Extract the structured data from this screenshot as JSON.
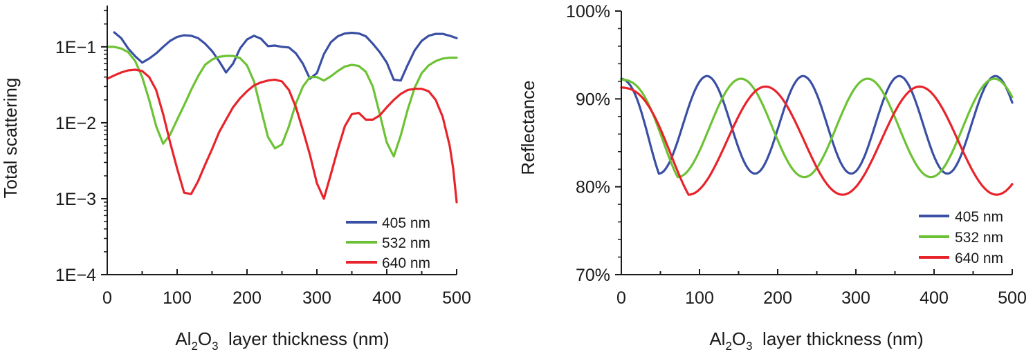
{
  "figure_title": "",
  "colors": {
    "405": "#3a4fa3",
    "532": "#6cc234",
    "640": "#e8232a",
    "axis": "#1a1a1a"
  },
  "chart_data": [
    {
      "type": "line",
      "title": "",
      "xlabel": {
        "base": "Al",
        "sub1": "2",
        "mid": "O",
        "sub2": "3",
        "rest": "  layer thickness (nm)"
      },
      "ylabel": "Total scattering",
      "yscale": "log",
      "xlim": [
        0,
        500
      ],
      "ylim": [
        0.0001,
        0.35
      ],
      "xticks": [
        0,
        100,
        200,
        300,
        400,
        500
      ],
      "xtick_labels": [
        "0",
        "100",
        "200",
        "300",
        "400",
        "500"
      ],
      "yticks": [
        0.0001,
        0.001,
        0.01,
        0.1
      ],
      "ytick_labels": [
        "1E−4",
        "1E−3",
        "1E−2",
        "1E−1"
      ],
      "legend_position": "bottom-right",
      "series": [
        {
          "name": "405 nm",
          "color_key": "405",
          "x": [
            10,
            20,
            30,
            40,
            50,
            60,
            70,
            80,
            90,
            100,
            110,
            120,
            130,
            140,
            150,
            160,
            170,
            180,
            190,
            200,
            210,
            220,
            230,
            240,
            250,
            260,
            270,
            280,
            290,
            300,
            310,
            320,
            330,
            340,
            350,
            360,
            370,
            380,
            390,
            400,
            410,
            420,
            430,
            440,
            450,
            460,
            470,
            480,
            490,
            500
          ],
          "y": [
            0.155,
            0.13,
            0.095,
            0.075,
            0.062,
            0.07,
            0.082,
            0.1,
            0.12,
            0.135,
            0.142,
            0.14,
            0.13,
            0.11,
            0.088,
            0.065,
            0.046,
            0.06,
            0.095,
            0.125,
            0.14,
            0.128,
            0.102,
            0.104,
            0.1,
            0.098,
            0.082,
            0.06,
            0.038,
            0.045,
            0.08,
            0.115,
            0.138,
            0.15,
            0.153,
            0.15,
            0.138,
            0.11,
            0.085,
            0.062,
            0.037,
            0.036,
            0.058,
            0.09,
            0.12,
            0.14,
            0.148,
            0.148,
            0.14,
            0.13
          ]
        },
        {
          "name": "532 nm",
          "color_key": "532",
          "x": [
            0,
            10,
            20,
            30,
            40,
            50,
            60,
            70,
            80,
            90,
            100,
            110,
            120,
            130,
            140,
            150,
            160,
            170,
            180,
            190,
            200,
            210,
            220,
            230,
            240,
            250,
            260,
            270,
            280,
            290,
            300,
            310,
            320,
            330,
            340,
            350,
            360,
            370,
            380,
            390,
            400,
            410,
            420,
            430,
            440,
            450,
            460,
            470,
            480,
            490,
            500
          ],
          "y": [
            0.1,
            0.1,
            0.095,
            0.085,
            0.065,
            0.04,
            0.02,
            0.009,
            0.0053,
            0.007,
            0.011,
            0.017,
            0.027,
            0.041,
            0.058,
            0.068,
            0.074,
            0.076,
            0.076,
            0.071,
            0.057,
            0.035,
            0.015,
            0.0065,
            0.0046,
            0.0052,
            0.009,
            0.018,
            0.03,
            0.04,
            0.04,
            0.036,
            0.041,
            0.048,
            0.055,
            0.058,
            0.056,
            0.047,
            0.03,
            0.013,
            0.0055,
            0.0036,
            0.0068,
            0.015,
            0.029,
            0.045,
            0.057,
            0.065,
            0.07,
            0.072,
            0.072
          ]
        },
        {
          "name": "640 nm",
          "color_key": "640",
          "x": [
            0,
            10,
            20,
            30,
            40,
            50,
            60,
            70,
            80,
            90,
            100,
            110,
            120,
            130,
            140,
            150,
            160,
            170,
            180,
            190,
            200,
            210,
            220,
            230,
            240,
            250,
            260,
            270,
            280,
            290,
            300,
            310,
            320,
            330,
            340,
            350,
            360,
            370,
            380,
            390,
            400,
            410,
            420,
            430,
            440,
            450,
            460,
            470,
            480,
            490,
            495,
            500
          ],
          "y": [
            0.038,
            0.042,
            0.046,
            0.049,
            0.05,
            0.048,
            0.04,
            0.027,
            0.013,
            0.0055,
            0.0025,
            0.0012,
            0.00115,
            0.0017,
            0.0028,
            0.0045,
            0.0075,
            0.011,
            0.016,
            0.021,
            0.026,
            0.031,
            0.034,
            0.036,
            0.037,
            0.035,
            0.027,
            0.016,
            0.008,
            0.0038,
            0.0016,
            0.001,
            0.0021,
            0.0045,
            0.009,
            0.013,
            0.0135,
            0.011,
            0.011,
            0.0125,
            0.016,
            0.02,
            0.024,
            0.027,
            0.028,
            0.028,
            0.026,
            0.02,
            0.012,
            0.005,
            0.0025,
            0.0009
          ]
        }
      ]
    },
    {
      "type": "line",
      "title": "",
      "xlabel": {
        "base": "Al",
        "sub1": "2",
        "mid": "O",
        "sub2": "3",
        "rest": "  layer thickness (nm)"
      },
      "ylabel": "Reflectance",
      "yscale": "linear",
      "xlim": [
        0,
        500
      ],
      "ylim": [
        70,
        100
      ],
      "xticks": [
        0,
        100,
        200,
        300,
        400,
        500
      ],
      "xtick_labels": [
        "0",
        "100",
        "200",
        "300",
        "400",
        "500"
      ],
      "yticks": [
        70,
        80,
        90,
        100
      ],
      "ytick_labels": [
        "70%",
        "80%",
        "90%",
        "100%"
      ],
      "legend_position": "bottom-right",
      "series": [
        {
          "name": "405 nm",
          "color_key": "405",
          "model": {
            "period": 123,
            "phase_x": 48,
            "min": 81.5,
            "max": 92.6,
            "start": 92.3
          }
        },
        {
          "name": "532 nm",
          "color_key": "532",
          "model": {
            "period": 162,
            "phase_x": 72,
            "min": 81.1,
            "max": 92.3,
            "start": 92.2
          }
        },
        {
          "name": "640 nm",
          "color_key": "640",
          "model": {
            "period": 197,
            "phase_x": 86,
            "min": 79.1,
            "max": 91.4,
            "start": 91.3
          }
        }
      ]
    }
  ]
}
